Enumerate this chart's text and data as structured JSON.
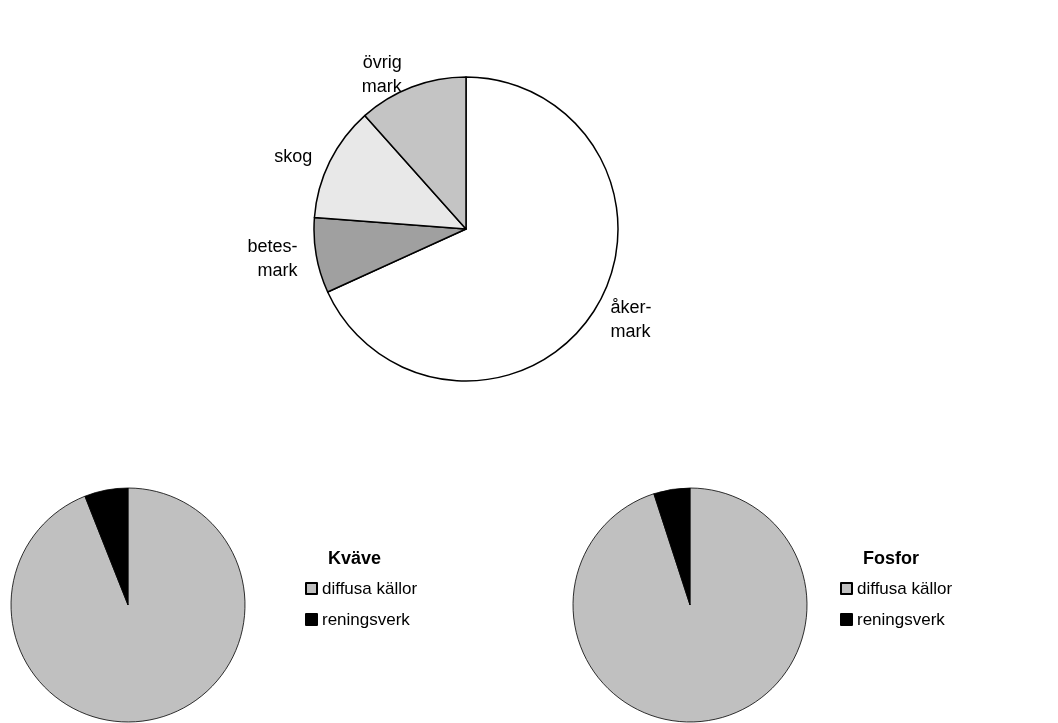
{
  "chart_data": [
    {
      "type": "pie",
      "categories": [
        "åker-\nmark",
        "betes-\nmark",
        "skog",
        "övrig\nmark"
      ],
      "values": [
        68.2,
        8.0,
        12.2,
        11.6
      ],
      "colors": [
        "#ffffff",
        "#a0a0a0",
        "#e8e8e8",
        "#c4c4c4"
      ],
      "legend": false
    },
    {
      "type": "pie",
      "legend_title": "Kväve",
      "categories": [
        "diffusa källor",
        "reningsverk"
      ],
      "values": [
        94,
        6
      ],
      "colors": [
        "#c0c0c0",
        "#000000"
      ],
      "legend": "right"
    },
    {
      "type": "pie",
      "legend_title": "Fosfor",
      "categories": [
        "diffusa källor",
        "reningsverk"
      ],
      "values": [
        95,
        5
      ],
      "colors": [
        "#c0c0c0",
        "#000000"
      ],
      "legend": "right"
    }
  ]
}
